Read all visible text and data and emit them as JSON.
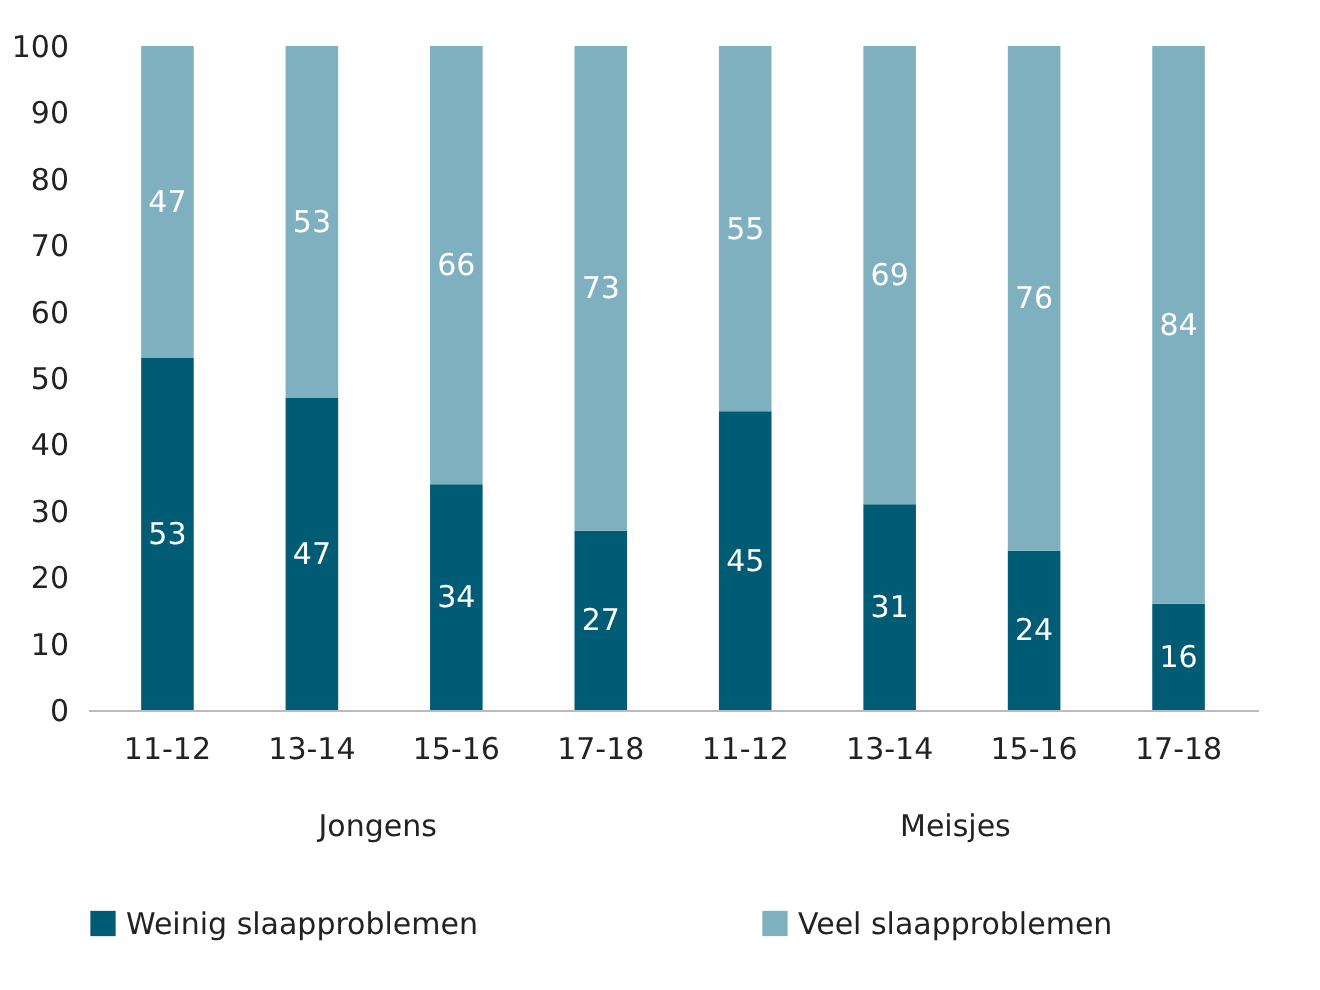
{
  "chart_data": {
    "type": "bar",
    "stacked": true,
    "categories": [
      "11-12",
      "13-14",
      "15-16",
      "17-18",
      "11-12",
      "13-14",
      "15-16",
      "17-18"
    ],
    "series": [
      {
        "name": "Weinig slaapproblemen",
        "color": "#005b74",
        "values": [
          53,
          47,
          34,
          27,
          45,
          31,
          24,
          16
        ]
      },
      {
        "name": "Veel slaapproblemen",
        "color": "#7fb0c0",
        "values": [
          47,
          53,
          66,
          73,
          55,
          69,
          76,
          84
        ]
      }
    ],
    "annotations": [
      "Jongens",
      "Meisjes"
    ],
    "ylim": [
      0,
      100
    ],
    "yticks": [
      0,
      10,
      20,
      30,
      40,
      50,
      60,
      70,
      80,
      90,
      100
    ],
    "grid": false,
    "legend": "bottom",
    "data_labels": true
  }
}
